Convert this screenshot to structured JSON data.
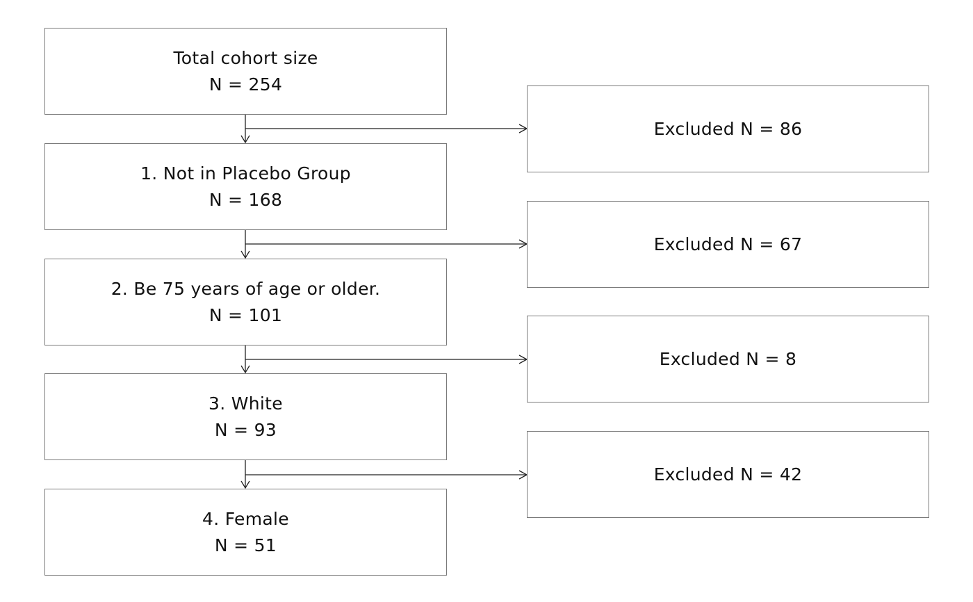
{
  "flowchart": {
    "steps": [
      {
        "label": "Total cohort size",
        "count": "N = 254"
      },
      {
        "label": "1. Not in Placebo Group",
        "count": "N = 168"
      },
      {
        "label": "2. Be 75 years of age or older.",
        "count": "N = 101"
      },
      {
        "label": "3. White",
        "count": "N = 93"
      },
      {
        "label": "4. Female",
        "count": "N = 51"
      }
    ],
    "exclusions": [
      {
        "label": "Excluded N = 86"
      },
      {
        "label": "Excluded N = 67"
      },
      {
        "label": "Excluded N = 8"
      },
      {
        "label": "Excluded N = 42"
      }
    ]
  }
}
